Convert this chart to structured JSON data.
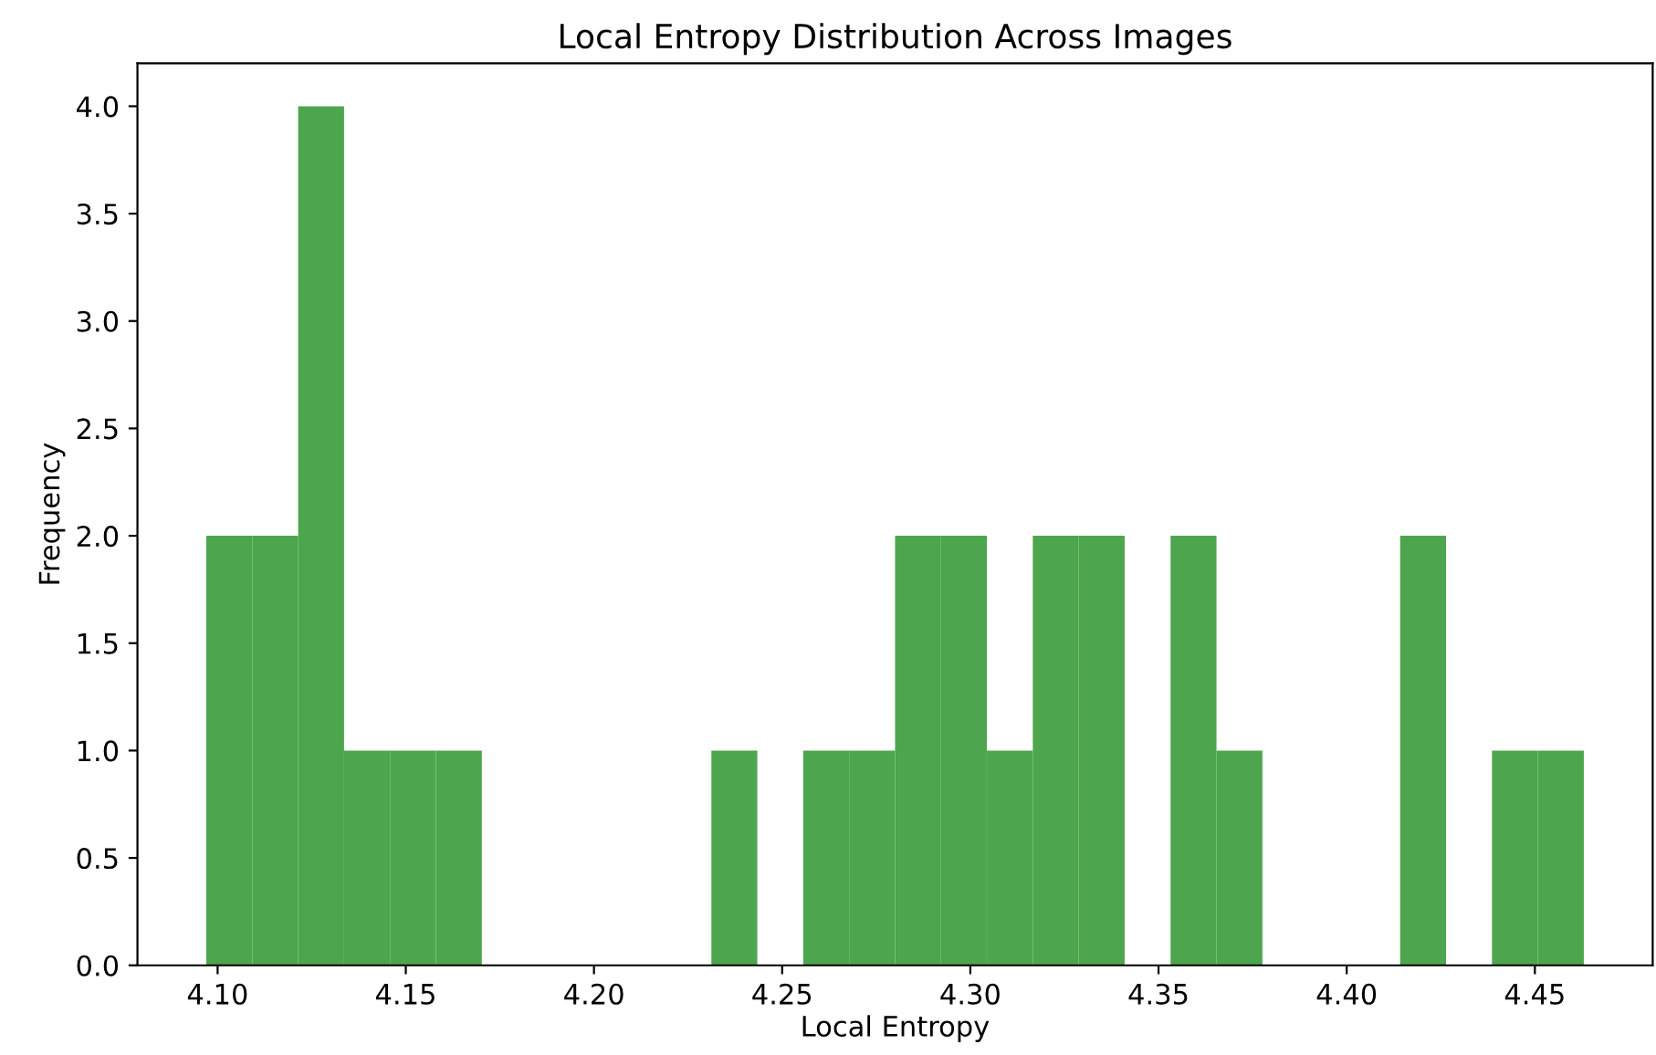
{
  "chart_data": {
    "type": "histogram",
    "title": "Local Entropy Distribution Across Images",
    "xlabel": "Local Entropy",
    "ylabel": "Frequency",
    "color": "#4da64d",
    "bins": [
      4.097,
      4.1092,
      4.1214,
      4.1336,
      4.1458,
      4.158,
      4.1702,
      4.1824,
      4.1946,
      4.2068,
      4.219,
      4.2312,
      4.2434,
      4.2556,
      4.2678,
      4.28,
      4.2922,
      4.3044,
      4.3166,
      4.3288,
      4.341,
      4.3532,
      4.3654,
      4.3776,
      4.3898,
      4.402,
      4.4142,
      4.4264,
      4.4386,
      4.4508,
      4.463
    ],
    "values": [
      2,
      2,
      4,
      1,
      1,
      1,
      0,
      0,
      0,
      0,
      0,
      1,
      0,
      1,
      1,
      2,
      2,
      1,
      2,
      2,
      0,
      2,
      1,
      0,
      0,
      0,
      2,
      0,
      1,
      1
    ],
    "xlim": [
      4.0787,
      4.4813
    ],
    "xticks": [
      {
        "value": 4.1,
        "label": "4.10"
      },
      {
        "value": 4.15,
        "label": "4.15"
      },
      {
        "value": 4.2,
        "label": "4.20"
      },
      {
        "value": 4.25,
        "label": "4.25"
      },
      {
        "value": 4.3,
        "label": "4.30"
      },
      {
        "value": 4.35,
        "label": "4.35"
      },
      {
        "value": 4.4,
        "label": "4.40"
      },
      {
        "value": 4.45,
        "label": "4.45"
      }
    ],
    "ylim": [
      0,
      4.2
    ],
    "yticks": [
      {
        "value": 0,
        "label": "0.0"
      },
      {
        "value": 0.5,
        "label": "0.5"
      },
      {
        "value": 1,
        "label": "1.0"
      },
      {
        "value": 1.5,
        "label": "1.5"
      },
      {
        "value": 2,
        "label": "2.0"
      },
      {
        "value": 2.5,
        "label": "2.5"
      },
      {
        "value": 3,
        "label": "3.0"
      },
      {
        "value": 3.5,
        "label": "3.5"
      },
      {
        "value": 4,
        "label": "4.0"
      }
    ],
    "grid": false
  }
}
